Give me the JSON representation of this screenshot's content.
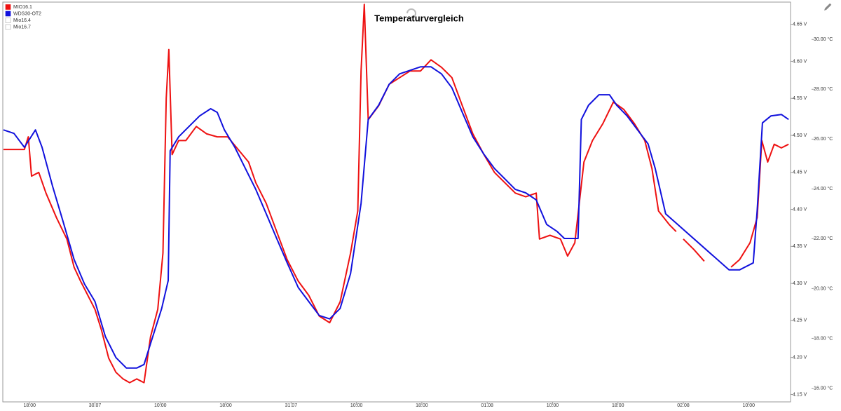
{
  "chart_data": {
    "type": "line",
    "title": "Temperaturvergleich",
    "xlim": [
      -0.41,
      11.64
    ],
    "xticks": [
      {
        "value": 0,
        "label": "18:00"
      },
      {
        "value": 1,
        "label": "30.07"
      },
      {
        "value": 2,
        "label": "10:00"
      },
      {
        "value": 3,
        "label": "18:00"
      },
      {
        "value": 4,
        "label": "31.07"
      },
      {
        "value": 5,
        "label": "10:00"
      },
      {
        "value": 6,
        "label": "18:00"
      },
      {
        "value": 7,
        "label": "01.08"
      },
      {
        "value": 8,
        "label": "10:00"
      },
      {
        "value": 9,
        "label": "18:00"
      },
      {
        "value": 10,
        "label": "02.08"
      },
      {
        "value": 11,
        "label": "10:00"
      }
    ],
    "ylim": [
      4.14,
      4.68
    ],
    "yticks": [
      {
        "value": 4.15,
        "label": "4.15 V"
      },
      {
        "value": 4.2,
        "label": "4.20 V"
      },
      {
        "value": 4.25,
        "label": "4.25 V"
      },
      {
        "value": 4.3,
        "label": "4.30 V"
      },
      {
        "value": 4.35,
        "label": "4.35 V"
      },
      {
        "value": 4.4,
        "label": "4.40 V"
      },
      {
        "value": 4.45,
        "label": "4.45 V"
      },
      {
        "value": 4.5,
        "label": "4.50 V"
      },
      {
        "value": 4.55,
        "label": "4.55 V"
      },
      {
        "value": 4.6,
        "label": "4.60 V"
      },
      {
        "value": 4.65,
        "label": "4.65 V"
      }
    ],
    "y2lim": [
      15.45,
      31.5
    ],
    "y2ticks": [
      {
        "value": 16,
        "label": "16.00 °C"
      },
      {
        "value": 18,
        "label": "18.00 °C"
      },
      {
        "value": 20,
        "label": "20.00 °C"
      },
      {
        "value": 22,
        "label": "22.00 °C"
      },
      {
        "value": 24,
        "label": "24.00 °C"
      },
      {
        "value": 26,
        "label": "26.00 °C"
      },
      {
        "value": 28,
        "label": "28.00 °C"
      },
      {
        "value": 30,
        "label": "30.00 °C"
      }
    ],
    "series": [
      {
        "name": "MIO16.1",
        "color": "#ee1111",
        "axis": "y",
        "x": [
          -0.4,
          -0.24,
          -0.08,
          -0.02,
          0.03,
          0.14,
          0.25,
          0.41,
          0.57,
          0.68,
          0.78,
          0.89,
          1.0,
          1.1,
          1.21,
          1.32,
          1.43,
          1.53,
          1.64,
          1.75,
          1.85,
          1.96,
          2.04,
          2.09,
          2.13,
          2.18,
          2.28,
          2.39,
          2.55,
          2.71,
          2.87,
          3.03,
          3.19,
          3.35,
          3.46,
          3.62,
          3.78,
          3.94,
          4.11,
          4.27,
          4.43,
          4.59,
          4.75,
          4.91,
          5.02,
          5.07,
          5.12,
          5.18,
          5.34,
          5.5,
          5.66,
          5.82,
          5.98,
          6.14,
          6.3,
          6.46,
          6.62,
          6.78,
          6.95,
          7.11,
          7.27,
          7.43,
          7.59,
          7.75,
          7.8,
          7.96,
          8.12,
          8.23,
          8.34,
          8.42,
          8.48,
          8.61,
          8.77,
          8.93,
          9.09,
          9.25,
          9.41,
          9.52,
          9.62,
          9.79,
          9.89,
          9.95,
          10.0,
          10.16,
          10.32,
          10.5,
          10.73,
          10.86,
          11.02,
          11.13,
          11.2,
          11.29,
          11.39,
          11.5,
          11.61
        ],
        "values": [
          4.481,
          4.481,
          4.481,
          4.498,
          4.445,
          4.45,
          4.422,
          4.389,
          4.36,
          4.322,
          4.303,
          4.284,
          4.265,
          4.237,
          4.199,
          4.18,
          4.171,
          4.166,
          4.171,
          4.166,
          4.228,
          4.265,
          4.341,
          4.55,
          4.616,
          4.474,
          4.493,
          4.493,
          4.512,
          4.502,
          4.498,
          4.498,
          4.481,
          4.464,
          4.436,
          4.408,
          4.37,
          4.332,
          4.303,
          4.284,
          4.256,
          4.247,
          4.275,
          4.341,
          4.398,
          4.587,
          4.677,
          4.521,
          4.54,
          4.569,
          4.578,
          4.587,
          4.587,
          4.602,
          4.592,
          4.578,
          4.54,
          4.502,
          4.474,
          4.45,
          4.436,
          4.422,
          4.417,
          4.422,
          4.36,
          4.365,
          4.36,
          4.337,
          4.355,
          4.417,
          4.464,
          4.493,
          4.516,
          4.545,
          4.535,
          4.516,
          4.493,
          4.455,
          4.398,
          4.379,
          4.37,
          null,
          4.36,
          4.346,
          4.33,
          null,
          4.322,
          4.332,
          4.355,
          4.389,
          4.493,
          4.464,
          4.488,
          4.483,
          4.488
        ]
      },
      {
        "name": "WDS30-OT2",
        "color": "#1111dd",
        "axis": "y2",
        "x": [
          -0.4,
          -0.24,
          -0.08,
          0.09,
          0.19,
          0.35,
          0.51,
          0.68,
          0.84,
          1.0,
          1.16,
          1.32,
          1.48,
          1.64,
          1.75,
          1.85,
          2.02,
          2.12,
          2.15,
          2.28,
          2.44,
          2.6,
          2.77,
          2.87,
          2.98,
          3.14,
          3.3,
          3.46,
          3.62,
          3.78,
          3.94,
          4.11,
          4.27,
          4.43,
          4.59,
          4.75,
          4.91,
          5.07,
          5.18,
          5.34,
          5.5,
          5.66,
          5.82,
          5.98,
          6.14,
          6.3,
          6.46,
          6.62,
          6.78,
          6.95,
          7.11,
          7.27,
          7.43,
          7.59,
          7.75,
          7.91,
          8.07,
          8.18,
          8.39,
          8.44,
          8.55,
          8.71,
          8.87,
          8.98,
          9.14,
          9.3,
          9.46,
          9.57,
          9.73,
          10.7,
          10.86,
          11.07,
          11.13,
          11.21,
          11.34,
          11.5,
          11.61
        ],
        "values": [
          26.37,
          26.23,
          25.67,
          26.37,
          25.67,
          24.12,
          22.71,
          21.17,
          20.18,
          19.48,
          18.07,
          17.23,
          16.81,
          16.81,
          16.95,
          17.79,
          19.2,
          20.32,
          25.53,
          26.09,
          26.51,
          26.93,
          27.22,
          27.07,
          26.37,
          25.67,
          24.82,
          23.98,
          23.0,
          22.01,
          21.03,
          20.04,
          19.48,
          18.92,
          18.78,
          19.2,
          20.6,
          23.42,
          26.79,
          27.36,
          28.2,
          28.62,
          28.76,
          28.9,
          28.9,
          28.62,
          28.06,
          27.07,
          26.09,
          25.39,
          24.82,
          24.4,
          23.98,
          23.84,
          23.56,
          22.57,
          22.29,
          22.01,
          22.01,
          26.79,
          27.36,
          27.78,
          27.78,
          27.36,
          26.93,
          26.37,
          25.81,
          24.82,
          23.0,
          20.75,
          20.75,
          21.03,
          23.14,
          26.65,
          26.93,
          26.99,
          26.79
        ]
      },
      {
        "name": "Mio16.4",
        "color": "#ffffff",
        "axis": "y",
        "visible": false,
        "x": [],
        "values": []
      },
      {
        "name": "Mio16.7",
        "color": "#ffffff",
        "axis": "y",
        "visible": false,
        "x": [],
        "values": []
      }
    ]
  }
}
